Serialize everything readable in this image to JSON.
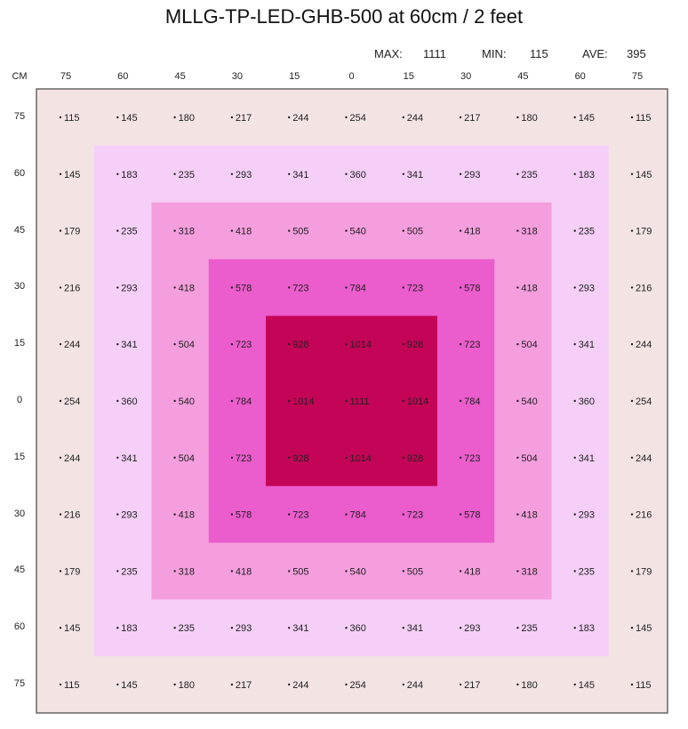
{
  "title": "MLLG-TP-LED-GHB-500 at 60cm / 2 feet",
  "stats": {
    "max_label": "MAX:",
    "max_value": "1111",
    "min_label": "MIN:",
    "min_value": "115",
    "ave_label": "AVE:",
    "ave_value": "395"
  },
  "colors": {
    "outer": "#f3e3e3",
    "level1": "#f5cff7",
    "level2": "#f59ede",
    "level3": "#eb5ccc",
    "level4": "#c40456",
    "border": "#222222"
  },
  "chart_data": {
    "type": "heatmap",
    "corner_label": "CM",
    "x_ticks": [
      "75",
      "60",
      "45",
      "30",
      "15",
      "0",
      "15",
      "30",
      "45",
      "60",
      "75"
    ],
    "y_ticks": [
      "75",
      "60",
      "45",
      "30",
      "15",
      "0",
      "15",
      "30",
      "45",
      "60",
      "75"
    ],
    "values": [
      [
        115,
        145,
        180,
        217,
        244,
        254,
        244,
        217,
        180,
        145,
        115
      ],
      [
        145,
        183,
        235,
        293,
        341,
        360,
        341,
        293,
        235,
        183,
        145
      ],
      [
        179,
        235,
        318,
        418,
        505,
        540,
        505,
        418,
        318,
        235,
        179
      ],
      [
        216,
        293,
        418,
        578,
        723,
        784,
        723,
        578,
        418,
        293,
        216
      ],
      [
        244,
        341,
        504,
        723,
        928,
        1014,
        928,
        723,
        504,
        341,
        244
      ],
      [
        254,
        360,
        540,
        784,
        1014,
        1111,
        1014,
        784,
        540,
        360,
        254
      ],
      [
        244,
        341,
        504,
        723,
        928,
        1014,
        928,
        723,
        504,
        341,
        244
      ],
      [
        216,
        293,
        418,
        578,
        723,
        784,
        723,
        578,
        418,
        293,
        216
      ],
      [
        179,
        235,
        318,
        418,
        505,
        540,
        505,
        418,
        318,
        235,
        179
      ],
      [
        145,
        183,
        235,
        293,
        341,
        360,
        341,
        293,
        235,
        183,
        145
      ],
      [
        115,
        145,
        180,
        217,
        244,
        254,
        244,
        217,
        180,
        145,
        115
      ]
    ]
  }
}
